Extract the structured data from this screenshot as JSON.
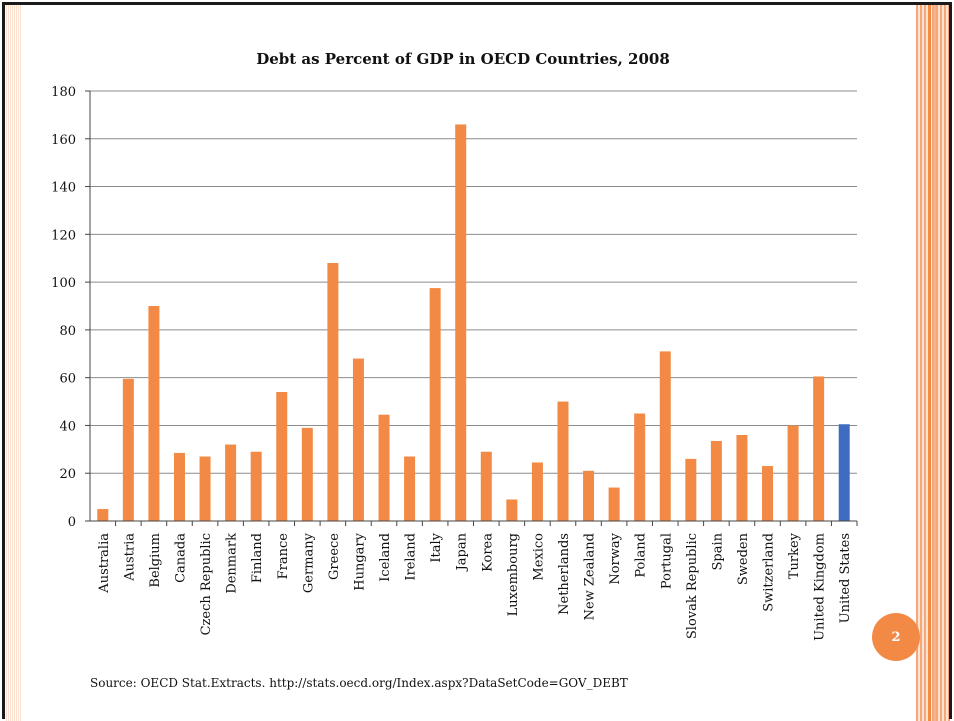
{
  "slide": {
    "page_number": "2",
    "source": "Source:  OECD Stat.Extracts.  http://stats.oecd.org/Index.aspx?DataSetCode=GOV_DEBT",
    "accent_color": "#f28a46"
  },
  "chart_data": {
    "type": "bar",
    "title": "Debt as Percent of GDP in OECD Countries, 2008",
    "xlabel": "",
    "ylabel": "",
    "ylim": [
      0,
      180
    ],
    "yticks": [
      0,
      20,
      40,
      60,
      80,
      100,
      120,
      140,
      160,
      180
    ],
    "grid": true,
    "legend": "none",
    "bar_color": "#f28a46",
    "highlight_color": "#3d6cc0",
    "highlight_category": "United States",
    "categories": [
      "Australia",
      "Austria",
      "Belgium",
      "Canada",
      "Czech Republic",
      "Denmark",
      "Finland",
      "France",
      "Germany",
      "Greece",
      "Hungary",
      "Iceland",
      "Ireland",
      "Italy",
      "Japan",
      "Korea",
      "Luxembourg",
      "Mexico",
      "Netherlands",
      "New Zealand",
      "Norway",
      "Poland",
      "Portugal",
      "Slovak Republic",
      "Spain",
      "Sweden",
      "Switzerland",
      "Turkey",
      "United Kingdom",
      "United States"
    ],
    "values": [
      5,
      59.5,
      90,
      28.5,
      27,
      32,
      29,
      54,
      39,
      108,
      68,
      44.5,
      27,
      97.5,
      166,
      29,
      9,
      24.5,
      50,
      21,
      14,
      45,
      71,
      26,
      33.5,
      36,
      23,
      40,
      60.5,
      40.5
    ]
  }
}
